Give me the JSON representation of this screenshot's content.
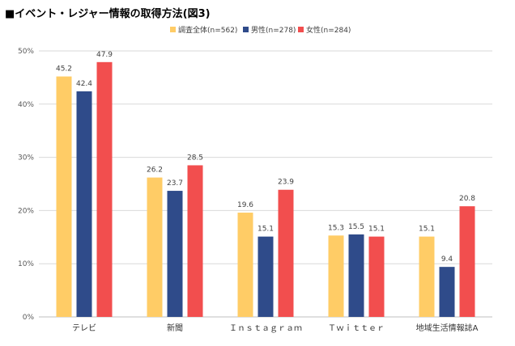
{
  "chart_data": {
    "type": "bar",
    "title": "■イベント・レジャー情報の取得方法(図3)",
    "xlabel": "",
    "ylabel": "",
    "categories": [
      "テレビ",
      "新聞",
      "Ｉｎｓｔａｇｒａｍ",
      "Ｔｗｉｔｔｅｒ",
      "地域生活情報誌A"
    ],
    "series": [
      {
        "name": "調査全体(n=562)",
        "color": "#FFCC66",
        "values": [
          45.2,
          26.2,
          19.6,
          15.3,
          15.1
        ]
      },
      {
        "name": "男性(n=278)",
        "color": "#2F4B8A",
        "values": [
          42.4,
          23.7,
          15.1,
          15.5,
          9.4
        ]
      },
      {
        "name": "女性(n=284)",
        "color": "#F24E4E",
        "values": [
          47.9,
          28.5,
          23.9,
          15.1,
          20.8
        ]
      }
    ],
    "ylim": [
      0,
      50
    ],
    "yticks": [
      0,
      10,
      20,
      30,
      40,
      50
    ],
    "ytick_labels": [
      "0%",
      "10%",
      "20%",
      "30%",
      "40%",
      "50%"
    ],
    "grid": true,
    "legend_position": "top-center",
    "gridline_color": "#D9D9D9"
  }
}
